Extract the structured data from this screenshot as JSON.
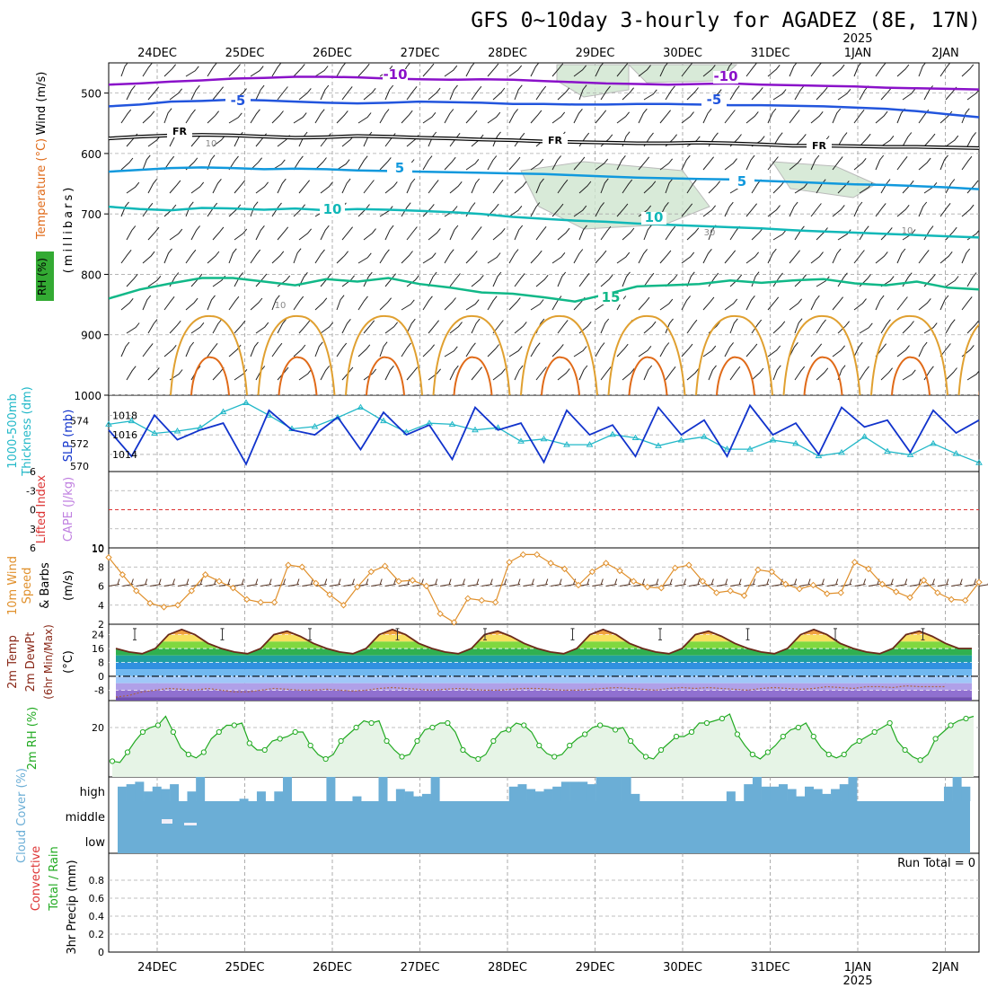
{
  "title": "GFS 0~10day 3-hourly for AGADEZ (8E, 17N)",
  "time_axis": {
    "days": [
      "24DEC",
      "25DEC",
      "26DEC",
      "27DEC",
      "28DEC",
      "29DEC",
      "30DEC",
      "31DEC",
      "1JAN",
      "2JAN"
    ],
    "year_label": "2025",
    "year_under": "1JAN"
  },
  "colors": {
    "temp_purple": "#8a11c9",
    "temp_blue": "#2255dd",
    "temp_lightblue": "#1199dd",
    "temp_teal": "#11b8b8",
    "temp_green": "#11b888",
    "temp_orange": "#e0a030",
    "temp_darkorange": "#e06a18",
    "freezing": "#000000",
    "rh_fill": "#cfe6cf",
    "thickness": "#22b8c8",
    "slp": "#1133cc",
    "wind_speed": "#e0902c",
    "rh2m": "#22aa22",
    "cloud": "#6baed6",
    "lifted_red": "#dd3333"
  },
  "chart_data": [
    {
      "type": "line",
      "panel": "upper-air",
      "ylabel_parts": [
        "Wind (m/s)",
        "Temperature (°C)",
        "RH (%)",
        "(millibars)"
      ],
      "y_ticks": [
        500,
        600,
        700,
        800,
        900,
        1000
      ],
      "ylim": [
        450,
        1000
      ],
      "isotherm_labels": [
        "-10",
        "-5",
        "FR",
        "5",
        "10",
        "15"
      ],
      "rh_contour_labels": [
        "10",
        "30",
        "10",
        "10"
      ],
      "grid": true,
      "series": [
        {
          "name": "-10",
          "values": [
            486,
            484,
            481,
            479,
            476,
            475,
            473,
            473,
            474,
            476,
            477,
            478,
            477,
            478,
            480,
            482,
            484,
            485,
            486,
            485,
            484,
            486,
            487,
            488,
            489,
            491,
            492,
            493,
            494
          ]
        },
        {
          "name": "-5",
          "values": [
            522,
            519,
            514,
            513,
            511,
            512,
            514,
            516,
            517,
            516,
            514,
            515,
            516,
            518,
            518,
            519,
            519,
            518,
            518,
            519,
            520,
            520,
            521,
            522,
            524,
            526,
            530,
            535,
            540
          ]
        },
        {
          "name": "FR",
          "values": [
            575,
            572,
            570,
            569,
            570,
            572,
            574,
            573,
            571,
            572,
            574,
            575,
            577,
            578,
            580,
            581,
            582,
            583,
            583,
            582,
            583,
            585,
            587,
            587,
            588,
            589,
            589,
            590,
            591
          ]
        },
        {
          "name": "5",
          "values": [
            630,
            627,
            624,
            623,
            624,
            626,
            625,
            626,
            628,
            629,
            630,
            631,
            632,
            633,
            634,
            636,
            638,
            640,
            641,
            642,
            643,
            645,
            647,
            649,
            651,
            652,
            654,
            656,
            659
          ]
        },
        {
          "name": "10",
          "values": [
            688,
            692,
            694,
            690,
            691,
            693,
            691,
            694,
            692,
            693,
            695,
            697,
            700,
            705,
            708,
            711,
            713,
            716,
            718,
            720,
            722,
            724,
            727,
            729,
            731,
            733,
            735,
            737,
            739
          ]
        },
        {
          "name": "15",
          "values": [
            840,
            825,
            815,
            806,
            806,
            812,
            818,
            808,
            812,
            806,
            816,
            822,
            830,
            832,
            838,
            845,
            833,
            820,
            818,
            816,
            810,
            814,
            810,
            808,
            815,
            818,
            812,
            822,
            825
          ]
        }
      ]
    },
    {
      "type": "line",
      "panel": "thickness-slp",
      "ylabel_left": [
        "1000-500mb",
        "Thickness (dm)"
      ],
      "ylabel_right": "SLP (mb)",
      "left_ticks": [
        570,
        572,
        574
      ],
      "right_ticks": [
        1014,
        1016,
        1018
      ],
      "series": [
        {
          "name": "Thickness",
          "values": [
            573.7,
            574.0,
            572.9,
            573.1,
            573.4,
            574.8,
            575.6,
            574.5,
            573.3,
            573.5,
            574.3,
            575.2,
            574.0,
            573.0,
            573.8,
            573.7,
            573.2,
            573.4,
            572.2,
            572.4,
            571.9,
            571.9,
            572.8,
            572.5,
            571.8,
            572.3,
            572.6,
            571.5,
            571.5,
            572.3,
            572.0,
            570.9,
            571.2,
            572.6,
            571.3,
            571.0,
            572.0,
            571.1,
            570.3
          ]
        },
        {
          "name": "SLP",
          "values": [
            1016.5,
            1013.8,
            1018.0,
            1015.5,
            1016.5,
            1017.2,
            1013.0,
            1018.5,
            1016.5,
            1016.0,
            1017.8,
            1014.5,
            1018.3,
            1016.0,
            1017.0,
            1013.5,
            1018.8,
            1016.5,
            1017.2,
            1013.2,
            1018.5,
            1016.0,
            1017.0,
            1013.8,
            1018.8,
            1016.0,
            1017.5,
            1013.8,
            1019.0,
            1016.0,
            1017.2,
            1014.0,
            1018.8,
            1016.8,
            1017.5,
            1014.2,
            1018.5,
            1016.2,
            1017.5
          ]
        }
      ]
    },
    {
      "type": "line",
      "panel": "cape-li",
      "ylabel_left": "Lifted Index",
      "ylabel_right": "CAPE (J/kg)",
      "left_ticks": [
        "-6",
        "-3",
        "0",
        "3",
        "6"
      ],
      "right_ticks": [
        "10"
      ],
      "series": []
    },
    {
      "type": "line",
      "panel": "10m-wind",
      "ylabel_parts": [
        "10m Wind",
        "Speed",
        "& Barbs",
        "(m/s)"
      ],
      "y_ticks": [
        2,
        4,
        6,
        8,
        10
      ],
      "ylim": [
        2,
        10
      ],
      "series": [
        {
          "name": "Speed",
          "values": [
            9.0,
            7.2,
            5.5,
            4.2,
            3.8,
            4.0,
            5.5,
            7.2,
            6.5,
            5.8,
            4.6,
            4.3,
            4.3,
            8.2,
            8.0,
            6.3,
            5.1,
            4.0,
            5.9,
            7.5,
            8.1,
            6.5,
            6.6,
            6.0,
            3.1,
            2.2,
            4.7,
            4.5,
            4.3,
            8.5,
            9.3,
            9.3,
            8.4,
            7.8,
            6.1,
            7.5,
            8.4,
            7.6,
            6.5,
            5.9,
            5.8,
            7.9,
            8.2,
            6.5,
            5.3,
            5.5,
            5.0,
            7.7,
            7.5,
            6.2,
            5.7,
            6.1,
            5.2,
            5.3,
            8.5,
            7.8,
            6.2,
            5.4,
            4.8,
            6.6,
            5.3,
            4.6,
            4.5,
            6.4
          ]
        }
      ]
    },
    {
      "type": "area",
      "panel": "2m-temp",
      "ylabel_parts": [
        "2m Temp",
        "2m DewPt",
        "(6hr Min/Max)",
        "(°C)"
      ],
      "y_ticks": [
        -8,
        0,
        8,
        16,
        24
      ],
      "ylim": [
        -14,
        30
      ],
      "series": [
        {
          "name": "Temp",
          "values": [
            16,
            14,
            13,
            16,
            24,
            27,
            24,
            19,
            16,
            14,
            13,
            16,
            24,
            26,
            23,
            19,
            16,
            14,
            13,
            16,
            24,
            27,
            24,
            19,
            16,
            14,
            13,
            16,
            24,
            26,
            23,
            19,
            16,
            14,
            13,
            16,
            24,
            27,
            24,
            19,
            16,
            14,
            13,
            16,
            24,
            26,
            23,
            19,
            16,
            14,
            13,
            16,
            24,
            27,
            24,
            19,
            16,
            14,
            13,
            16,
            24,
            26,
            23,
            19,
            16,
            16
          ]
        },
        {
          "name": "DewPt",
          "values": [
            -12,
            -11,
            -9,
            -8,
            -7,
            -7.5,
            -8,
            -7,
            -8,
            -9,
            -9,
            -8,
            -7,
            -7.5,
            -8,
            -8,
            -7.5,
            -8,
            -8.5,
            -8,
            -7,
            -6.5,
            -7,
            -7.5,
            -8,
            -7.5,
            -7,
            -7.5,
            -8,
            -8,
            -7.5,
            -7,
            -7,
            -7.5,
            -8,
            -8,
            -7.5,
            -7,
            -6.5,
            -7,
            -7.5,
            -8,
            -7,
            -6.5,
            -7,
            -6.5,
            -7,
            -7.5,
            -8,
            -7,
            -6.5,
            -7,
            -7.5,
            -7,
            -6,
            -6.5,
            -7,
            -6,
            -6,
            -6.5,
            -5.5,
            -6,
            -6,
            -6
          ]
        }
      ]
    },
    {
      "type": "area",
      "panel": "2m-rh",
      "ylabel": "2m RH (%)",
      "y_ticks": [
        20
      ],
      "ylim": [
        0,
        30
      ],
      "series": [
        {
          "name": "RH",
          "values": [
            5,
            4.5,
            9,
            14,
            18,
            20,
            21,
            25,
            18,
            11,
            8,
            6.5,
            9,
            15,
            18,
            21,
            21,
            22,
            13,
            10,
            10,
            14,
            15,
            16,
            18,
            18,
            12,
            8,
            6,
            8,
            14,
            17,
            20,
            23,
            22,
            23,
            14,
            10,
            7,
            8,
            14,
            19,
            20,
            22,
            22,
            18,
            10,
            7,
            6,
            8,
            14,
            18,
            19,
            22,
            21,
            18,
            12,
            8.5,
            7,
            8,
            12,
            15,
            17,
            20,
            21,
            20.5,
            19,
            20,
            14,
            10,
            7,
            6,
            10,
            13,
            16,
            16,
            18,
            22,
            22,
            23,
            24,
            26,
            17,
            12,
            8,
            6,
            9,
            12,
            16,
            19,
            20,
            22,
            16,
            11,
            8,
            6.5,
            8,
            12,
            14,
            16,
            18,
            20,
            22,
            14,
            10,
            7,
            5.5,
            8,
            15,
            18,
            21,
            23,
            24,
            25
          ]
        }
      ]
    },
    {
      "type": "bar",
      "panel": "cloud-cover",
      "ylabel": "Cloud Cover (%)",
      "levels": [
        "high",
        "middle",
        "low"
      ],
      "series": [
        {
          "name": "high",
          "values": [
            60,
            70,
            80,
            40,
            60,
            50,
            70,
            0,
            40,
            100,
            0,
            0,
            0,
            0,
            10,
            0,
            40,
            0,
            40,
            100,
            0,
            0,
            0,
            0,
            100,
            0,
            0,
            20,
            0,
            0,
            100,
            0,
            50,
            40,
            20,
            30,
            100,
            0,
            0,
            0,
            0,
            0,
            0,
            0,
            0,
            60,
            70,
            50,
            40,
            50,
            60,
            80,
            80,
            80,
            70,
            100,
            100,
            100,
            100,
            30,
            0,
            0,
            0,
            0,
            0,
            0,
            0,
            0,
            0,
            0,
            40,
            0,
            70,
            100,
            60,
            60,
            70,
            50,
            20,
            60,
            50,
            30,
            50,
            70,
            100,
            0,
            0,
            0,
            0,
            0,
            0,
            0,
            0,
            0,
            0,
            60,
            100,
            60
          ]
        }
      ]
    },
    {
      "type": "bar",
      "panel": "precip",
      "ylabel_parts": [
        "3hr Precip (mm)"
      ],
      "legend_parts": [
        "Total / Rain",
        "Convective"
      ],
      "y_ticks": [
        "0",
        "0.2",
        "0.4",
        "0.6",
        "0.8"
      ],
      "ylim": [
        0,
        1
      ],
      "run_total": "Run Total = 0",
      "series": []
    }
  ]
}
